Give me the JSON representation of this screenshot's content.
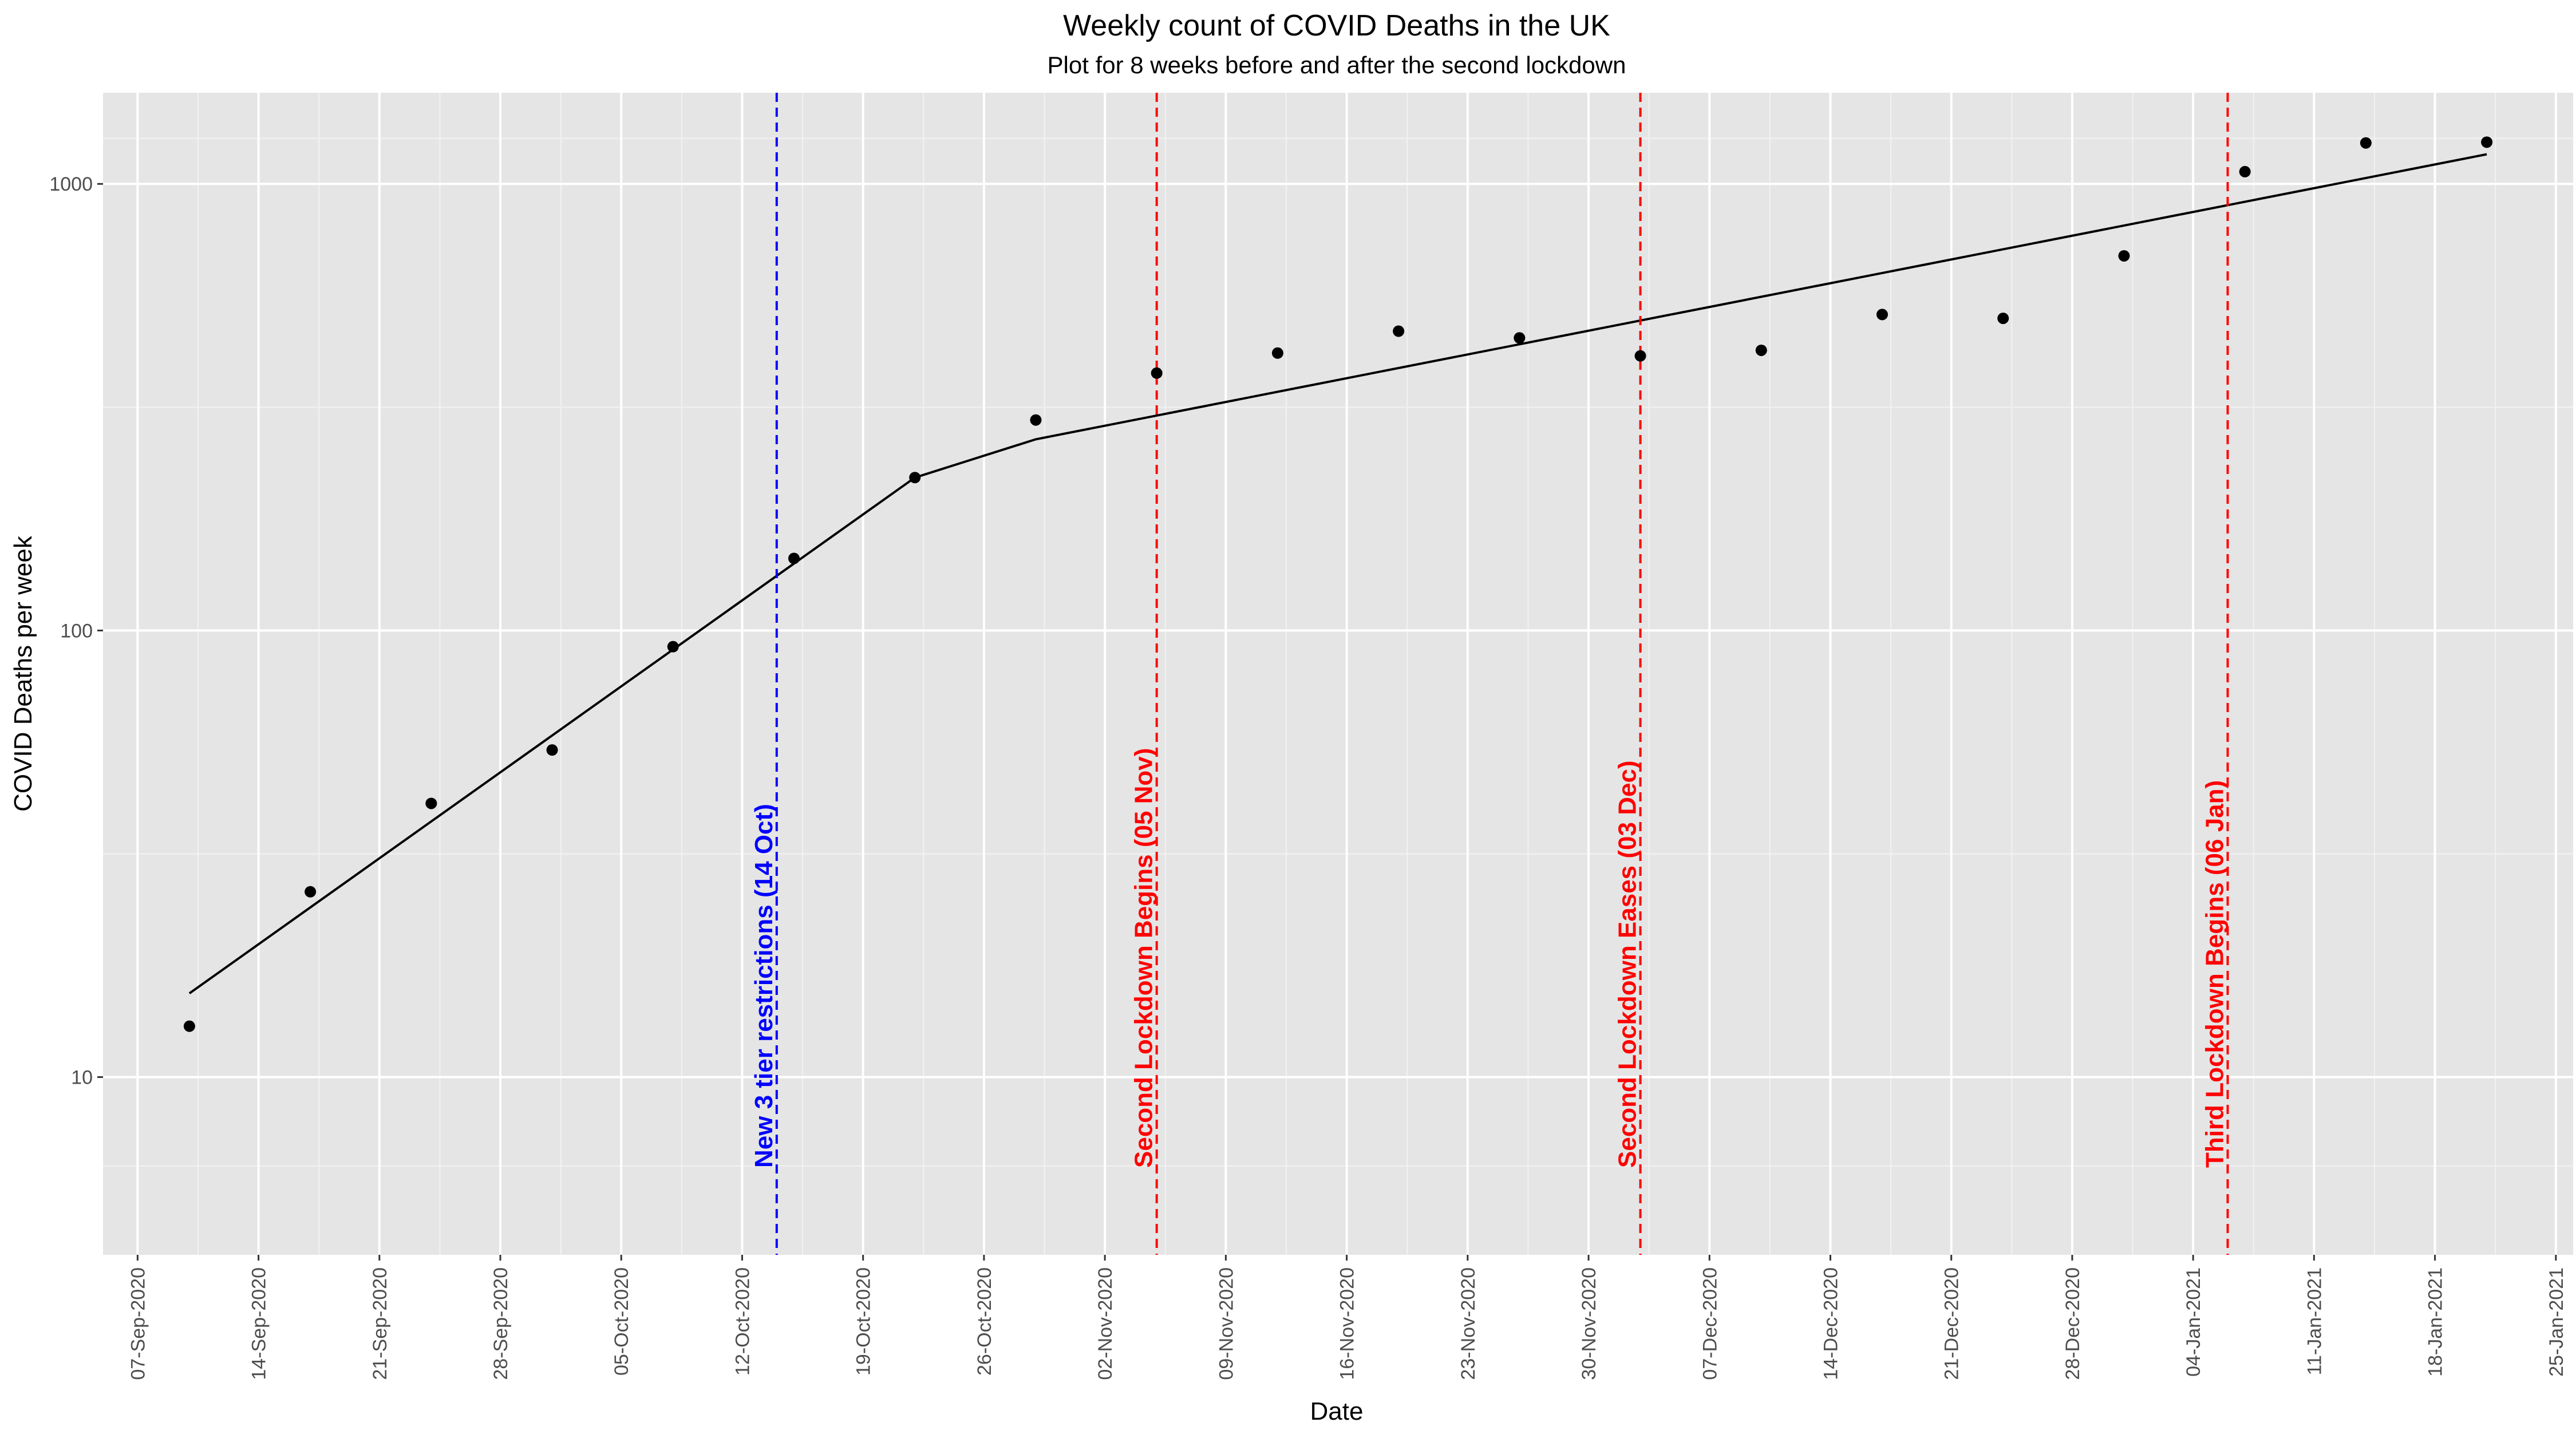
{
  "chart_data": {
    "type": "scatter",
    "title": "Weekly count of COVID Deaths in the UK",
    "subtitle": "Plot for 8 weeks before and after the second lockdown",
    "xlabel": "Date",
    "ylabel": "COVID Deaths per week",
    "y_scale": "log10",
    "ylim": [
      4,
      1600
    ],
    "xlim": [
      "2020-09-05",
      "2021-01-26"
    ],
    "grid": true,
    "panel_background": "#e5e5e5",
    "grid_color": "#ffffff",
    "y_ticks": [
      10,
      100,
      1000
    ],
    "y_tick_labels": [
      "10",
      "100",
      "1000"
    ],
    "x_ticks": [
      "2020-09-07",
      "2020-09-14",
      "2020-09-21",
      "2020-09-28",
      "2020-10-05",
      "2020-10-12",
      "2020-10-19",
      "2020-10-26",
      "2020-11-02",
      "2020-11-09",
      "2020-11-16",
      "2020-11-23",
      "2020-11-30",
      "2020-12-07",
      "2020-12-14",
      "2020-12-21",
      "2020-12-28",
      "2021-01-04",
      "2021-01-11",
      "2021-01-18",
      "2021-01-25"
    ],
    "x_tick_labels": [
      "07-Sep-2020",
      "14-Sep-2020",
      "21-Sep-2020",
      "28-Sep-2020",
      "05-Oct-2020",
      "12-Oct-2020",
      "19-Oct-2020",
      "26-Oct-2020",
      "02-Nov-2020",
      "09-Nov-2020",
      "16-Nov-2020",
      "23-Nov-2020",
      "30-Nov-2020",
      "07-Dec-2020",
      "14-Dec-2020",
      "21-Dec-2020",
      "28-Dec-2020",
      "04-Jan-2021",
      "11-Jan-2021",
      "18-Jan-2021",
      "25-Jan-2021"
    ],
    "points": {
      "color": "#000000",
      "x": [
        "2020-09-10",
        "2020-09-17",
        "2020-09-24",
        "2020-10-01",
        "2020-10-08",
        "2020-10-15",
        "2020-10-22",
        "2020-10-29",
        "2020-11-05",
        "2020-11-12",
        "2020-11-19",
        "2020-11-26",
        "2020-12-03",
        "2020-12-10",
        "2020-12-17",
        "2020-12-24",
        "2020-12-31",
        "2021-01-07",
        "2021-01-14",
        "2021-01-21"
      ],
      "y": [
        13,
        26,
        41,
        54,
        92,
        145,
        220,
        296,
        377,
        418,
        468,
        452,
        412,
        424,
        510,
        500,
        690,
        1065,
        1235,
        1240
      ]
    },
    "fit_line": {
      "color": "#000000",
      "x": [
        "2020-09-10",
        "2020-10-22",
        "2020-10-29",
        "2021-01-21"
      ],
      "y": [
        15.4,
        220,
        268,
        1165
      ]
    },
    "vlines": [
      {
        "x": "2020-10-14",
        "label": "New 3 tier restrictions (14 Oct)",
        "color": "#0000ff"
      },
      {
        "x": "2020-11-05",
        "label": "Second Lockdown Begins (05 Nov)",
        "color": "#ff0000"
      },
      {
        "x": "2020-12-03",
        "label": "Second Lockdown Eases (03 Dec)",
        "color": "#ff0000"
      },
      {
        "x": "2021-01-06",
        "label": "Third Lockdown Begins (06 Jan)",
        "color": "#ff0000"
      }
    ]
  }
}
